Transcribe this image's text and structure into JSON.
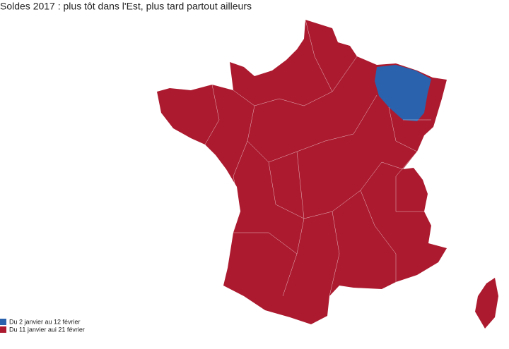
{
  "title": "Soldes 2017 : plus tôt dans l'Est, plus tard partout ailleurs",
  "legend": [
    {
      "label": "Du 2 janvier au 12 février",
      "color": "#2a62ad"
    },
    {
      "label": "Du 11 janvier aui 21 février",
      "color": "#ac1a2f"
    }
  ]
}
